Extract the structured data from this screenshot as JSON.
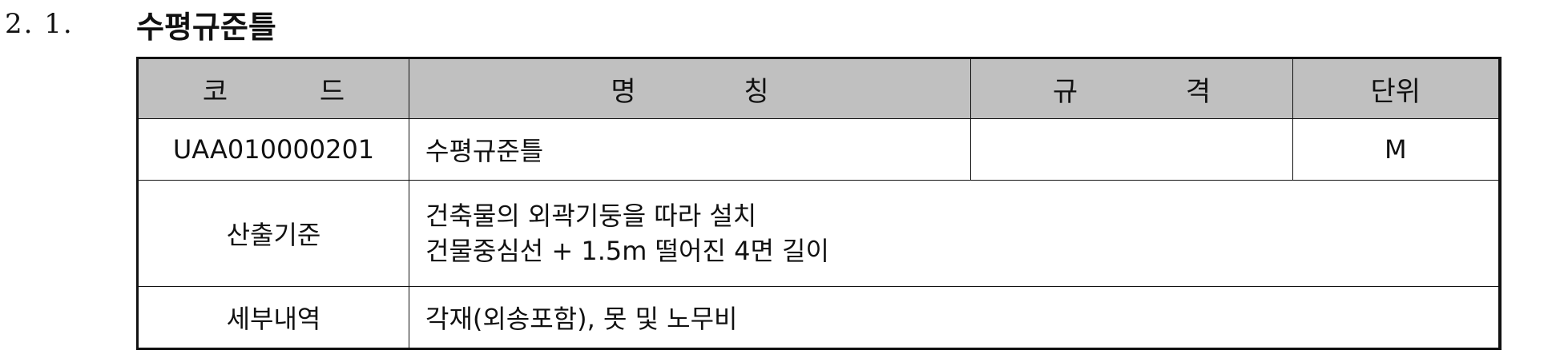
{
  "heading": {
    "number": "2. 1.",
    "title": "수평규준틀"
  },
  "table": {
    "headers": {
      "code": "코 드",
      "name": "명 칭",
      "spec": "규 격",
      "unit": "단위"
    },
    "item": {
      "code": "UAA010000201",
      "name": "수평규준틀",
      "spec": "",
      "unit": "M"
    },
    "basis": {
      "label": "산출기준",
      "line1": "건축물의 외곽기둥을 따라 설치",
      "line2": "건물중심선 + 1.5m 떨어진 4면 길이"
    },
    "detail": {
      "label": "세부내역",
      "value": "각재(외송포함), 못 및 노무비"
    }
  }
}
